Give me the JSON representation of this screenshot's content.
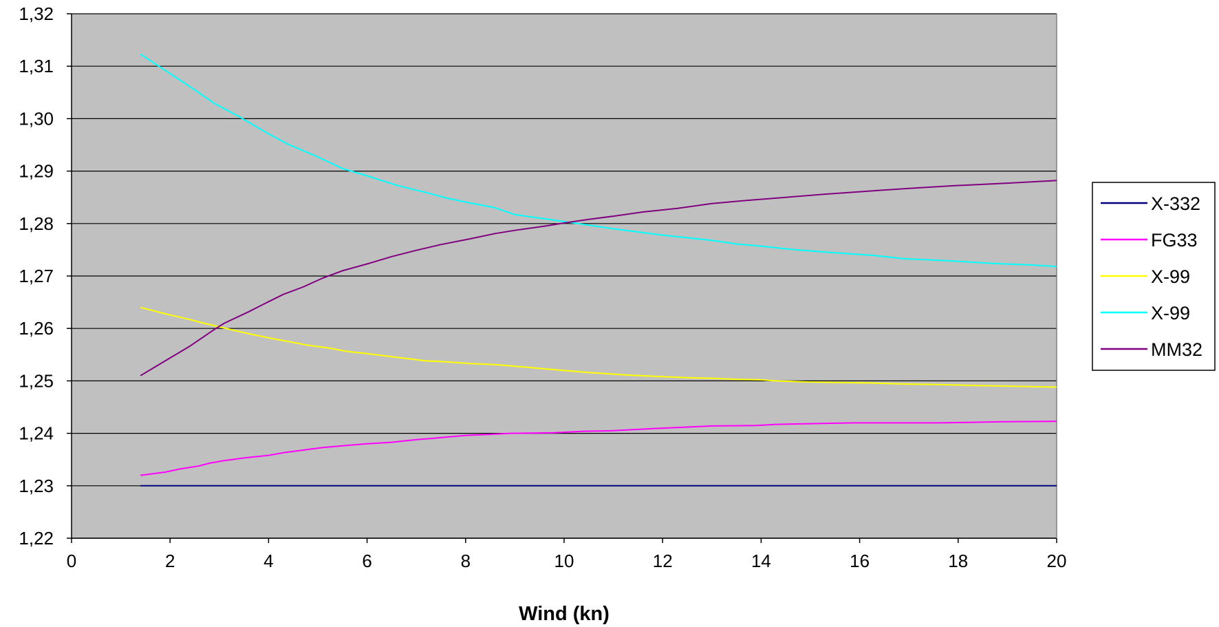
{
  "chart_data": {
    "type": "line",
    "title": "",
    "xlabel": "Wind (kn)",
    "ylabel": "",
    "xlim": [
      0,
      20
    ],
    "ylim": [
      1.22,
      1.32
    ],
    "x_ticks": [
      "0",
      "2",
      "4",
      "6",
      "8",
      "10",
      "12",
      "14",
      "16",
      "18",
      "20"
    ],
    "y_ticks": [
      "1,22",
      "1,23",
      "1,24",
      "1,25",
      "1,26",
      "1,27",
      "1,28",
      "1,29",
      "1,30",
      "1,31",
      "1,32"
    ],
    "grid": "horizontal",
    "legend_position": "right",
    "plot_background": "#c0c0c0",
    "series": [
      {
        "name": "X-332",
        "color": "#000080",
        "x": [
          1.4,
          20
        ],
        "y": [
          1.23,
          1.23
        ]
      },
      {
        "name": "FG33",
        "color": "#ff00ff",
        "x": [
          1.4,
          1.9,
          2.2,
          2.6,
          2.8,
          3.1,
          3.5,
          4.0,
          4.3,
          4.7,
          5.1,
          5.6,
          6.0,
          6.5,
          7.0,
          7.4,
          8.0,
          8.5,
          8.9,
          9.8,
          10.4,
          11.0,
          11.8,
          12.5,
          13.0,
          13.9,
          14.3,
          14.8,
          15.9,
          16.6,
          17.6,
          18.3,
          18.9,
          20
        ],
        "y": [
          1.232,
          1.2326,
          1.2332,
          1.2338,
          1.2343,
          1.2348,
          1.2353,
          1.2358,
          1.2363,
          1.2368,
          1.2373,
          1.2377,
          1.238,
          1.2383,
          1.2388,
          1.2391,
          1.2396,
          1.2398,
          1.24,
          1.2401,
          1.2404,
          1.2405,
          1.2409,
          1.2412,
          1.2414,
          1.2415,
          1.2417,
          1.2418,
          1.242,
          1.242,
          1.242,
          1.2421,
          1.2422,
          1.2423
        ]
      },
      {
        "name": "X-99",
        "color": "#ffff00",
        "x": [
          1.4,
          1.9,
          2.4,
          2.6,
          3.0,
          3.5,
          4.0,
          4.4,
          4.8,
          5.2,
          5.6,
          6.0,
          6.6,
          7.2,
          7.5,
          8.1,
          8.6,
          9.0,
          9.6,
          10.5,
          11.3,
          12.0,
          12.5,
          13.0,
          13.5,
          14.0,
          14.3,
          14.9,
          15.6,
          16.2,
          16.9,
          17.6,
          18.4,
          19.0,
          20
        ],
        "y": [
          1.264,
          1.2628,
          1.2617,
          1.2612,
          1.2603,
          1.2592,
          1.2582,
          1.2575,
          1.2568,
          1.2563,
          1.2556,
          1.2552,
          1.2545,
          1.2538,
          1.2537,
          1.2533,
          1.2531,
          1.2528,
          1.2523,
          1.2516,
          1.2511,
          1.2508,
          1.2506,
          1.2505,
          1.2503,
          1.2502,
          1.25,
          1.2498,
          1.2497,
          1.2496,
          1.2494,
          1.2493,
          1.2491,
          1.249,
          1.2488
        ]
      },
      {
        "name": "X-99",
        "color": "#00ffff",
        "x": [
          1.4,
          2.0,
          2.5,
          2.9,
          3.4,
          4.0,
          4.4,
          5.0,
          5.5,
          6.0,
          6.6,
          7.2,
          7.6,
          8.0,
          8.6,
          9.0,
          9.6,
          10.2,
          11.0,
          12.0,
          13.0,
          13.5,
          14.0,
          14.7,
          15.4,
          16.3,
          16.9,
          17.8,
          18.7,
          19.5,
          20
        ],
        "y": [
          1.3123,
          1.3086,
          1.3055,
          1.3029,
          1.3004,
          1.2971,
          1.2951,
          1.2927,
          1.2905,
          1.2891,
          1.2873,
          1.2859,
          1.2849,
          1.2841,
          1.283,
          1.2817,
          1.2809,
          1.2801,
          1.279,
          1.2778,
          1.2768,
          1.2761,
          1.2757,
          1.275,
          1.2745,
          1.2739,
          1.2733,
          1.2729,
          1.2724,
          1.2721,
          1.2718
        ]
      },
      {
        "name": "MM32",
        "color": "#800080",
        "x": [
          1.4,
          1.9,
          2.4,
          2.9,
          3.1,
          3.6,
          4.0,
          4.3,
          4.7,
          5.1,
          5.5,
          6.0,
          6.5,
          7.0,
          7.5,
          8.1,
          8.6,
          9.0,
          9.6,
          10.0,
          10.5,
          11.0,
          11.6,
          12.3,
          13.0,
          13.7,
          14.5,
          15.3,
          16.2,
          17.0,
          17.9,
          19.0,
          20
        ],
        "y": [
          1.251,
          1.2538,
          1.2566,
          1.2598,
          1.261,
          1.2632,
          1.2651,
          1.2665,
          1.2679,
          1.2696,
          1.271,
          1.2723,
          1.2737,
          1.2749,
          1.276,
          1.2771,
          1.2781,
          1.2787,
          1.2795,
          1.2801,
          1.2808,
          1.2814,
          1.2822,
          1.2829,
          1.2838,
          1.2844,
          1.285,
          1.2856,
          1.2862,
          1.2867,
          1.2872,
          1.2877,
          1.2882
        ]
      }
    ]
  }
}
